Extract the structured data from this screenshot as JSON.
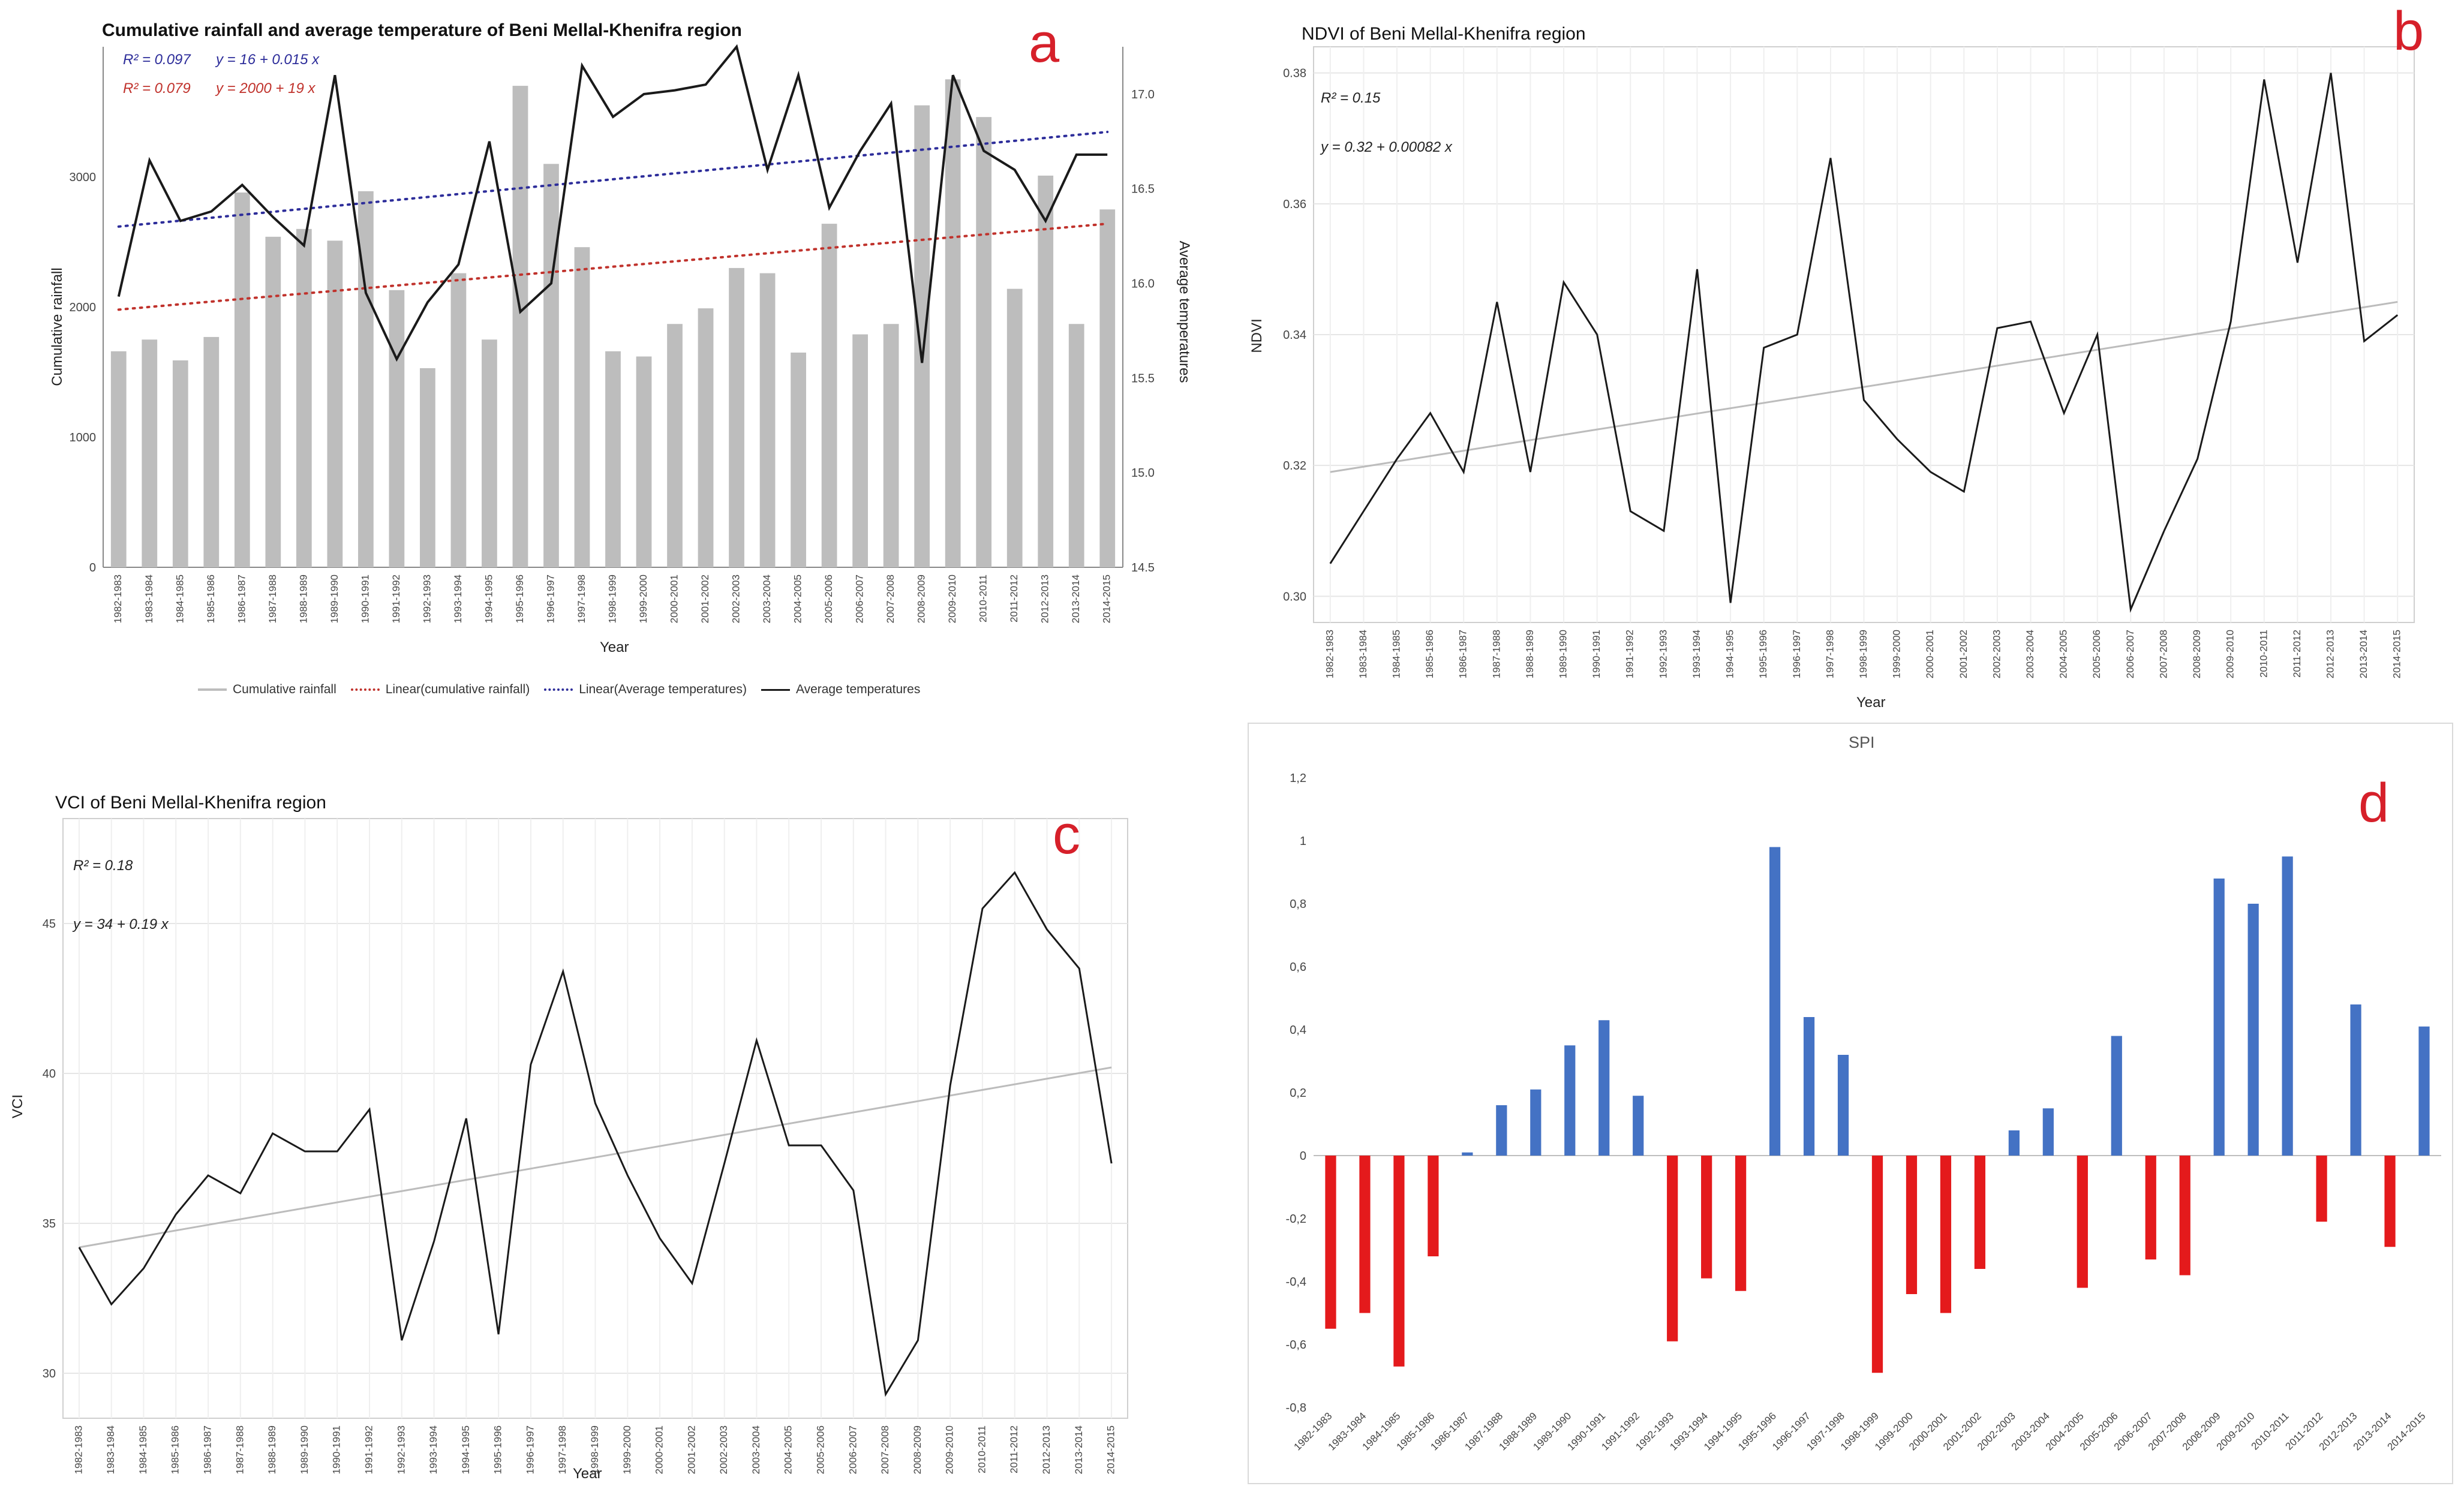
{
  "colors": {
    "bar_gray": "#bdbdbd",
    "linear_rain": "#c0322c",
    "linear_temp": "#2d2d9a",
    "temp_line": "#1a1a1a",
    "trend_gray": "#bcbcbc",
    "spi_pos": "#4472c4",
    "spi_neg": "#e41a1c",
    "letter": "#d6202a"
  },
  "seasons": [
    "1982-1983",
    "1983-1984",
    "1984-1985",
    "1985-1986",
    "1986-1987",
    "1987-1988",
    "1988-1989",
    "1989-1990",
    "1990-1991",
    "1991-1992",
    "1992-1993",
    "1993-1994",
    "1994-1995",
    "1995-1996",
    "1996-1997",
    "1997-1998",
    "1998-1999",
    "1999-2000",
    "2000-2001",
    "2001-2002",
    "2002-2003",
    "2003-2004",
    "2004-2005",
    "2005-2006",
    "2006-2007",
    "2007-2008",
    "2008-2009",
    "2009-2010",
    "2010-2011",
    "2011-2012",
    "2012-2013",
    "2013-2014",
    "2014-2015"
  ],
  "chart_data": [
    {
      "id": "a",
      "type": "bar+line",
      "letter": "a",
      "title": "Cumulative rainfall and average temperature of Beni Mellal-Khenifra region",
      "xlabel": "Year",
      "ylabel": "Cumulative rainfall",
      "y2label": "Average temperatures",
      "ylim": [
        0,
        4000
      ],
      "y2lim": [
        14.5,
        17.25
      ],
      "yticks": [
        0,
        1000,
        2000,
        3000
      ],
      "y2ticks": [
        14.5,
        15.0,
        15.5,
        16.0,
        16.5,
        17.0
      ],
      "annotations": [
        {
          "r2": "R² = 0.097",
          "eq": "y = 16 + 0.015 x",
          "color": "#2d2d9a"
        },
        {
          "r2": "R² = 0.079",
          "eq": "y = 2000 + 19 x",
          "color": "#c0322c"
        }
      ],
      "series": [
        {
          "name": "Cumulative rainfall",
          "kind": "bar",
          "axis": "left",
          "values": [
            1660,
            1750,
            1590,
            1770,
            2880,
            2540,
            2600,
            2510,
            2890,
            2130,
            1530,
            2260,
            1750,
            3700,
            3100,
            2460,
            1660,
            1620,
            1870,
            1990,
            2300,
            2260,
            1650,
            2640,
            1790,
            1870,
            3550,
            3750,
            3460,
            2140,
            3010,
            1870,
            2750
          ]
        },
        {
          "name": "Average temperatures",
          "kind": "line",
          "axis": "right",
          "values": [
            15.93,
            16.65,
            16.33,
            16.38,
            16.52,
            16.35,
            16.2,
            17.1,
            15.95,
            15.6,
            15.9,
            16.1,
            16.75,
            15.85,
            16.0,
            17.15,
            16.88,
            17.0,
            17.02,
            17.05,
            17.25,
            16.6,
            17.1,
            16.4,
            16.7,
            16.95,
            15.58,
            17.1,
            16.7,
            16.6,
            16.33,
            16.68,
            16.68
          ]
        },
        {
          "name": "Linear(cumulative rainfall)",
          "kind": "trend",
          "axis": "left",
          "from": 1980,
          "to": 2640
        },
        {
          "name": "Linear(Average temperatures)",
          "kind": "trend",
          "axis": "right",
          "from": 16.3,
          "to": 16.8
        }
      ],
      "legend": [
        "Cumulative rainfall",
        "Linear(cumulative rainfall)",
        "Linear(Average temperatures)",
        "Average temperatures"
      ]
    },
    {
      "id": "b",
      "type": "line",
      "letter": "b",
      "title": "NDVI of Beni Mellal-Khenifra region",
      "xlabel": "Year",
      "ylabel": "NDVI",
      "ylim": [
        0.296,
        0.384
      ],
      "yticks": [
        0.3,
        0.32,
        0.34,
        0.36,
        0.38
      ],
      "ytick_labels": [
        "0.30",
        "0.32",
        "0.34",
        "0.36",
        "0.38"
      ],
      "annotations": {
        "r2": "R² = 0.15",
        "eq": "y = 0.32 + 0.00082 x"
      },
      "values": [
        0.305,
        0.313,
        0.321,
        0.328,
        0.319,
        0.345,
        0.319,
        0.348,
        0.34,
        0.313,
        0.31,
        0.35,
        0.299,
        0.338,
        0.34,
        0.367,
        0.33,
        0.324,
        0.319,
        0.316,
        0.341,
        0.342,
        0.328,
        0.34,
        0.298,
        0.31,
        0.321,
        0.342,
        0.379,
        0.351,
        0.38,
        0.339,
        0.343
      ],
      "trend": [
        0.319,
        0.345
      ]
    },
    {
      "id": "c",
      "type": "line",
      "letter": "c",
      "title": "VCI of Beni Mellal-Khenifra region",
      "xlabel": "Year",
      "ylabel": "VCI",
      "ylim": [
        28.5,
        48.5
      ],
      "yticks": [
        30,
        35,
        40,
        45
      ],
      "annotations": {
        "r2": "R² = 0.18",
        "eq": "y = 34 + 0.19 x"
      },
      "values": [
        34.2,
        32.3,
        33.5,
        35.3,
        36.6,
        36.0,
        38.0,
        37.4,
        37.4,
        38.8,
        31.1,
        34.4,
        38.5,
        31.3,
        40.3,
        43.4,
        39.0,
        36.6,
        34.5,
        33.0,
        37.0,
        41.1,
        37.6,
        37.6,
        36.1,
        29.3,
        31.1,
        39.6,
        45.5,
        46.7,
        44.8,
        43.5,
        37.0
      ],
      "trend": [
        34.2,
        40.2
      ]
    },
    {
      "id": "d",
      "type": "bar",
      "letter": "d",
      "title": "SPI",
      "ylim": [
        -0.8,
        1.2
      ],
      "yticks": [
        -0.8,
        -0.6,
        -0.4,
        -0.2,
        0,
        0.2,
        0.4,
        0.6,
        0.8,
        1,
        1.2
      ],
      "ytick_labels": [
        "-0,8",
        "-0,6",
        "-0,4",
        "-0,2",
        "0",
        "0,2",
        "0,4",
        "0,6",
        "0,8",
        "1",
        "1,2"
      ],
      "values": [
        -0.55,
        -0.5,
        -0.67,
        -0.32,
        0.01,
        0.16,
        0.21,
        0.35,
        0.43,
        0.19,
        -0.59,
        -0.39,
        -0.43,
        0.98,
        0.44,
        0.32,
        -0.69,
        -0.44,
        -0.5,
        -0.36,
        0.08,
        0.15,
        -0.42,
        0.38,
        -0.33,
        -0.38,
        0.88,
        0.8,
        0.95,
        -0.21,
        0.48,
        -0.29,
        0.41
      ]
    }
  ]
}
